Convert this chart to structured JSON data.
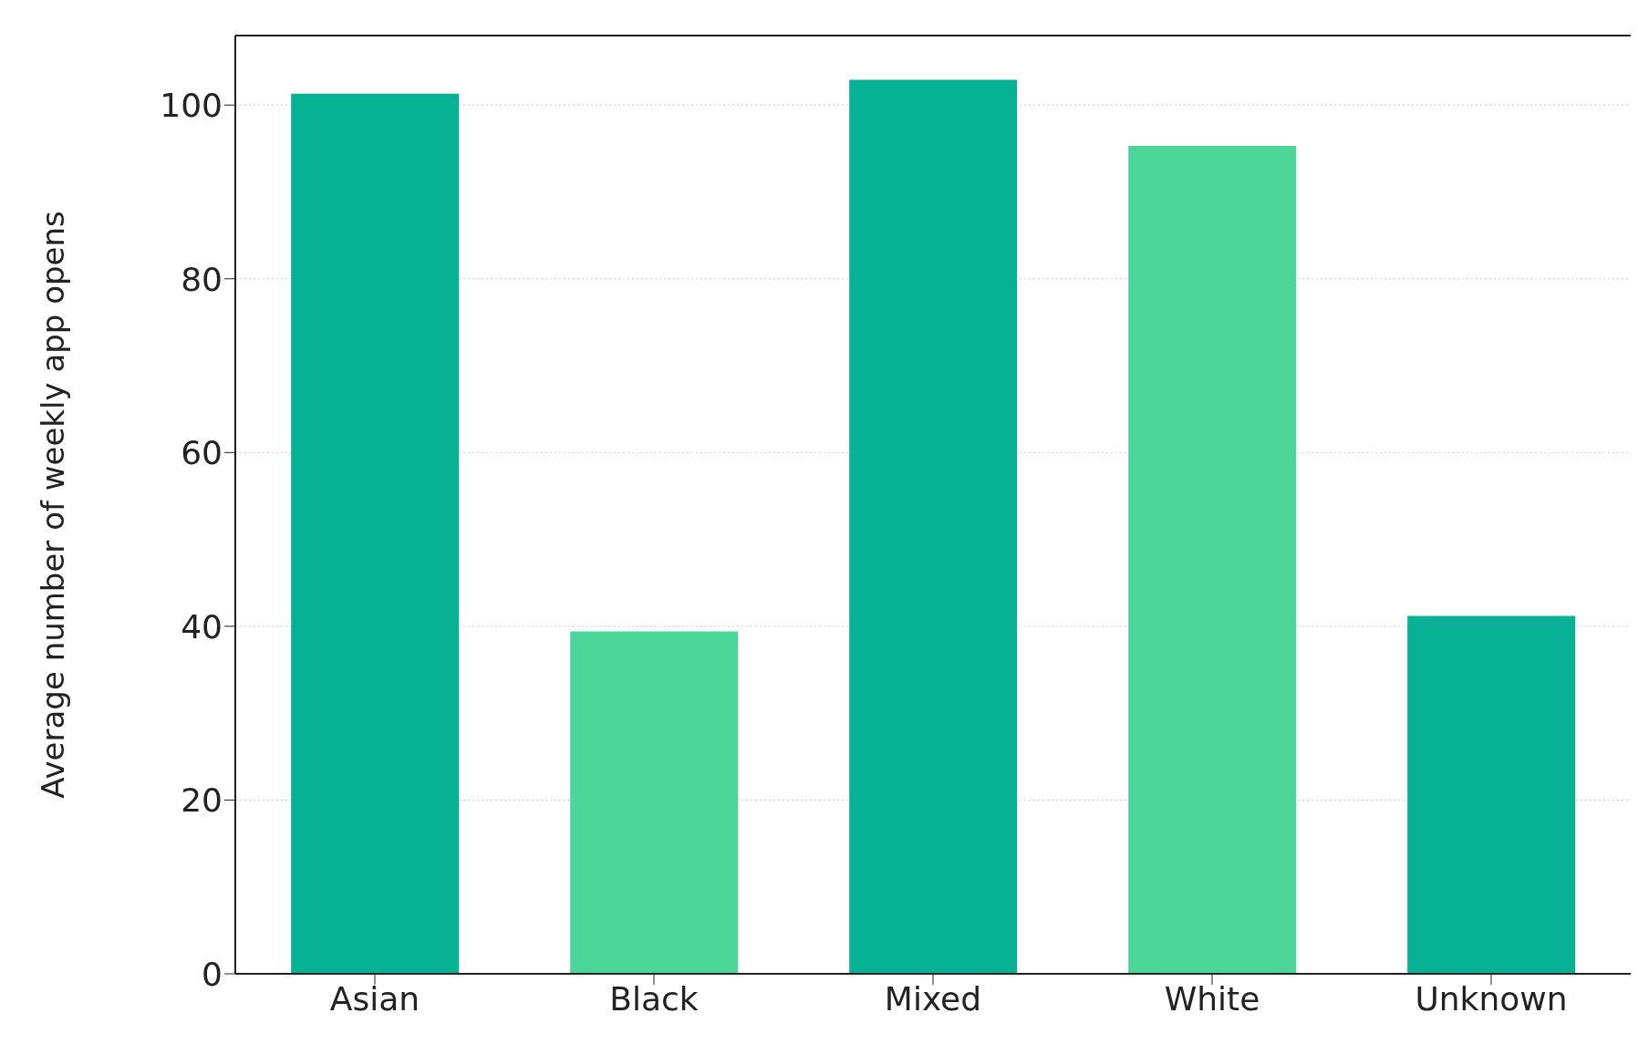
{
  "chart_data": {
    "type": "bar",
    "ylabel": "Average number of weekly app opens",
    "categories": [
      "Asian",
      "Black",
      "Mixed",
      "White",
      "Unknown"
    ],
    "values": [
      101.3,
      39.4,
      102.9,
      95.3,
      41.2
    ],
    "colors": [
      "#07b193",
      "#4bd598",
      "#07b193",
      "#4bd598",
      "#07b193"
    ],
    "ylim": [
      0,
      108
    ],
    "yticks": [
      0,
      20,
      40,
      60,
      80,
      100
    ],
    "grid": "y"
  }
}
